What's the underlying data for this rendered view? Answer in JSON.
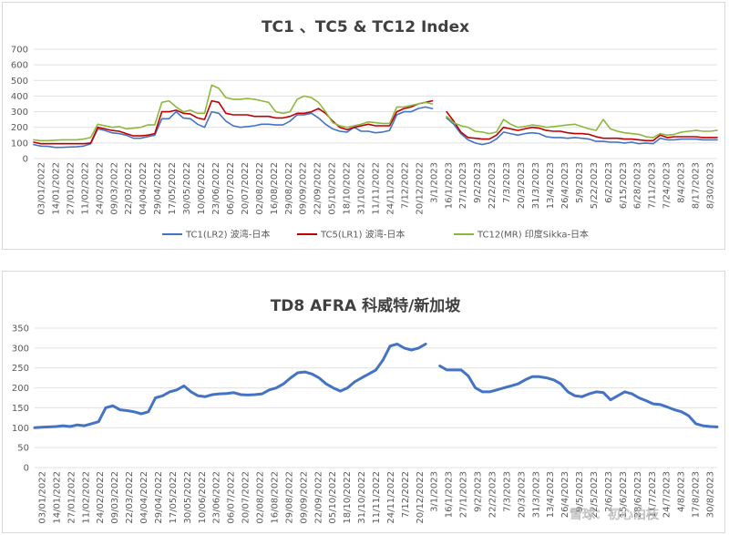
{
  "watermark": "雪球：初心泊枝",
  "chart_data": [
    {
      "type": "line",
      "title": "TC1 、TC5 & TC12 Index",
      "ylim": [
        0,
        700
      ],
      "yticks": [
        0,
        100,
        200,
        300,
        400,
        500,
        600,
        700
      ],
      "grid": true,
      "legend": "bottom",
      "x_tick_labels": [
        "03/01/2022",
        "14/01/2022",
        "27/01/2022",
        "11/02/2022",
        "24/02/2022",
        "09/03/2022",
        "22/03/2022",
        "04/04/2022",
        "29/04/2022",
        "17/05/2022",
        "30/05/2022",
        "10/06/2022",
        "23/06/2022",
        "06/07/2022",
        "20/07/2022",
        "02/08/2022",
        "16/08/2022",
        "29/08/2022",
        "09/09/2022",
        "22/09/2022",
        "05/10/2022",
        "18/10/2022",
        "31/10/2022",
        "11/11/2022",
        "24/11/2022",
        "7/12/2022",
        "20/12/2022",
        "3/1/2023",
        "16/1/2023",
        "27/1/2023",
        "9/2/2023",
        "22/2/2023",
        "7/3/2023",
        "20/3/2023",
        "31/3/2023",
        "13/4/2023",
        "26/4/2023",
        "5/9/2023",
        "5/22/2023",
        "6/2/2023",
        "6/15/2023",
        "6/28/2023",
        "7/11/2023",
        "7/24/2023",
        "8/4/2023",
        "8/17/2023",
        "8/30/2023"
      ],
      "series": [
        {
          "name": "TC1(LR2) 波湾-日本",
          "color": "#4472C4",
          "values": [
            90,
            80,
            78,
            72,
            72,
            74,
            75,
            80,
            95,
            190,
            180,
            165,
            160,
            150,
            130,
            130,
            140,
            150,
            255,
            255,
            300,
            260,
            255,
            220,
            200,
            300,
            290,
            240,
            210,
            200,
            205,
            210,
            220,
            220,
            215,
            215,
            240,
            280,
            280,
            290,
            260,
            220,
            190,
            175,
            170,
            200,
            175,
            175,
            165,
            170,
            180,
            280,
            300,
            300,
            320,
            330,
            320,
            null,
            260,
            220,
            160,
            120,
            100,
            90,
            100,
            125,
            170,
            160,
            150,
            160,
            165,
            160,
            140,
            135,
            135,
            130,
            135,
            130,
            125,
            110,
            110,
            105,
            105,
            100,
            105,
            95,
            100,
            95,
            130,
            120,
            120,
            125,
            125,
            125,
            120,
            120,
            120
          ]
        },
        {
          "name": "TC5(LR1) 波湾-日本",
          "color": "#C00000",
          "values": [
            105,
            95,
            95,
            95,
            95,
            95,
            95,
            95,
            100,
            200,
            190,
            180,
            175,
            160,
            145,
            145,
            150,
            160,
            300,
            300,
            310,
            290,
            285,
            260,
            250,
            370,
            360,
            290,
            280,
            280,
            280,
            270,
            270,
            270,
            260,
            260,
            270,
            290,
            290,
            300,
            320,
            290,
            240,
            200,
            185,
            200,
            210,
            220,
            210,
            210,
            210,
            300,
            320,
            330,
            350,
            360,
            370,
            null,
            300,
            240,
            170,
            135,
            130,
            125,
            125,
            150,
            200,
            190,
            180,
            190,
            200,
            195,
            180,
            175,
            175,
            165,
            160,
            160,
            155,
            140,
            130,
            130,
            130,
            125,
            125,
            120,
            115,
            115,
            150,
            135,
            140,
            140,
            140,
            140,
            135,
            135,
            135
          ]
        },
        {
          "name": "TC12(MR) 印度Sikka-日本",
          "color": "#8DB83D",
          "values": [
            120,
            115,
            115,
            118,
            120,
            120,
            120,
            125,
            135,
            220,
            210,
            200,
            205,
            190,
            195,
            200,
            215,
            215,
            360,
            370,
            330,
            300,
            310,
            290,
            290,
            470,
            450,
            390,
            380,
            380,
            385,
            380,
            370,
            360,
            300,
            290,
            300,
            380,
            400,
            390,
            360,
            300,
            230,
            210,
            200,
            210,
            220,
            235,
            230,
            225,
            225,
            330,
            330,
            340,
            350,
            360,
            350,
            null,
            270,
            230,
            210,
            200,
            175,
            170,
            160,
            170,
            250,
            220,
            200,
            205,
            215,
            210,
            200,
            205,
            210,
            215,
            220,
            205,
            190,
            180,
            250,
            190,
            175,
            165,
            160,
            155,
            140,
            135,
            160,
            150,
            155,
            170,
            175,
            180,
            175,
            175,
            180
          ]
        }
      ]
    },
    {
      "type": "line",
      "title": "TD8 AFRA 科威特/新加坡",
      "ylim": [
        0,
        350
      ],
      "yticks": [
        0,
        50,
        100,
        150,
        200,
        250,
        300,
        350
      ],
      "grid": true,
      "x_tick_labels": [
        "03/01/2022",
        "14/01/2022",
        "27/01/2022",
        "11/02/2022",
        "24/02/2022",
        "09/03/2022",
        "22/03/2022",
        "04/04/2022",
        "29/04/2022",
        "17/05/2022",
        "30/05/2022",
        "10/06/2022",
        "23/06/2022",
        "06/07/2022",
        "20/07/2022",
        "02/08/2022",
        "16/08/2022",
        "29/08/2022",
        "09/09/2022",
        "22/09/2022",
        "05/10/2022",
        "18/10/2022",
        "31/10/2022",
        "11/11/2022",
        "24/11/2022",
        "7/12/2022",
        "20/12/2022",
        "3/1/2023",
        "16/1/2023",
        "27/1/2023",
        "9/2/2023",
        "22/2/2023",
        "7/3/2023",
        "20/3/2023",
        "31/3/2023",
        "13/4/2023",
        "26/4/2023",
        "9/5/2023",
        "22/5/2023",
        "2/6/2023",
        "15/6/2023",
        "28/6/2023",
        "11/7/2023",
        "24/7/2023",
        "4/8/2023",
        "17/8/2023",
        "30/8/2023"
      ],
      "series": [
        {
          "name": "",
          "color": "#4472C4",
          "values": [
            100,
            101,
            102,
            103,
            105,
            103,
            107,
            105,
            110,
            115,
            150,
            155,
            145,
            143,
            140,
            135,
            140,
            175,
            180,
            190,
            195,
            205,
            190,
            180,
            178,
            183,
            185,
            186,
            188,
            183,
            182,
            183,
            185,
            195,
            200,
            210,
            225,
            238,
            240,
            235,
            225,
            210,
            200,
            192,
            200,
            215,
            225,
            235,
            245,
            270,
            305,
            310,
            300,
            295,
            300,
            310,
            null,
            255,
            245,
            245,
            245,
            230,
            200,
            190,
            190,
            195,
            200,
            205,
            210,
            220,
            228,
            228,
            225,
            220,
            210,
            190,
            180,
            178,
            185,
            190,
            188,
            170,
            180,
            190,
            185,
            175,
            168,
            160,
            158,
            152,
            145,
            140,
            130,
            110,
            105,
            103,
            102
          ]
        }
      ]
    }
  ]
}
